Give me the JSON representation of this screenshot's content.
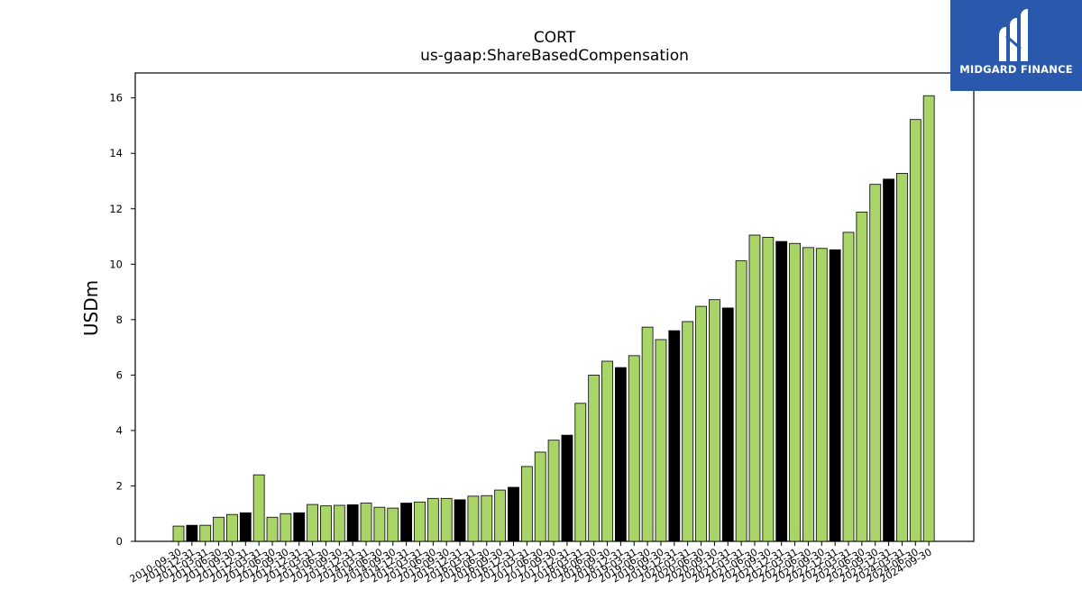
{
  "header": {
    "title": "CORT",
    "subtitle": "us-gaap:ShareBasedCompensation"
  },
  "brand": {
    "name": "MIDGARD FINANCE",
    "color": "#2a58ad"
  },
  "colors": {
    "bar_default": "#a8d468",
    "bar_highlight": "#000000"
  },
  "chart_data": {
    "type": "bar",
    "title": "CORT",
    "subtitle": "us-gaap:ShareBasedCompensation",
    "xlabel": "",
    "ylabel": "USDm",
    "ylim": [
      0,
      16.9
    ],
    "yticks": [
      0,
      2,
      4,
      6,
      8,
      10,
      12,
      14,
      16
    ],
    "grid": false,
    "categories": [
      "2010-09-30",
      "2010-12-31",
      "2011-03-31",
      "2011-06-30",
      "2011-09-30",
      "2011-12-31",
      "2012-03-31",
      "2012-06-30",
      "2012-09-30",
      "2012-12-31",
      "2013-03-31",
      "2013-06-30",
      "2013-09-30",
      "2013-12-31",
      "2014-03-31",
      "2014-06-30",
      "2014-09-30",
      "2014-12-31",
      "2015-03-31",
      "2015-06-30",
      "2015-09-30",
      "2015-12-31",
      "2016-03-31",
      "2016-06-30",
      "2016-09-30",
      "2016-12-31",
      "2017-03-31",
      "2017-06-30",
      "2017-09-30",
      "2017-12-31",
      "2018-03-31",
      "2018-06-30",
      "2018-09-30",
      "2018-12-31",
      "2019-03-31",
      "2019-06-30",
      "2019-09-30",
      "2019-12-31",
      "2020-03-31",
      "2020-06-30",
      "2020-09-30",
      "2020-12-31",
      "2021-03-31",
      "2021-06-30",
      "2021-09-30",
      "2021-12-31",
      "2022-03-31",
      "2022-06-30",
      "2022-09-30",
      "2022-12-31",
      "2023-03-31",
      "2023-06-30",
      "2023-09-30",
      "2023-12-31",
      "2024-03-31",
      "2024-06-30",
      "2024-09-30"
    ],
    "values": [
      0.55,
      0.58,
      0.58,
      0.87,
      0.97,
      1.03,
      2.4,
      0.87,
      1.0,
      1.03,
      1.33,
      1.28,
      1.3,
      1.32,
      1.38,
      1.23,
      1.2,
      1.38,
      1.42,
      1.55,
      1.55,
      1.5,
      1.63,
      1.65,
      1.85,
      1.95,
      2.7,
      3.22,
      3.65,
      3.83,
      4.98,
      6.0,
      6.5,
      6.27,
      6.7,
      7.73,
      7.28,
      7.6,
      7.93,
      8.48,
      8.72,
      8.42,
      10.12,
      11.05,
      10.97,
      10.82,
      10.75,
      10.6,
      10.57,
      10.52,
      11.15,
      11.88,
      12.88,
      13.07,
      13.28,
      15.22,
      16.08
    ],
    "highlight_categories": [
      "2010-12-31",
      "2011-12-31",
      "2012-12-31",
      "2013-12-31",
      "2014-12-31",
      "2015-12-31",
      "2016-12-31",
      "2017-12-31",
      "2018-12-31",
      "2019-12-31",
      "2020-12-31",
      "2021-12-31",
      "2022-12-31",
      "2023-12-31"
    ]
  }
}
